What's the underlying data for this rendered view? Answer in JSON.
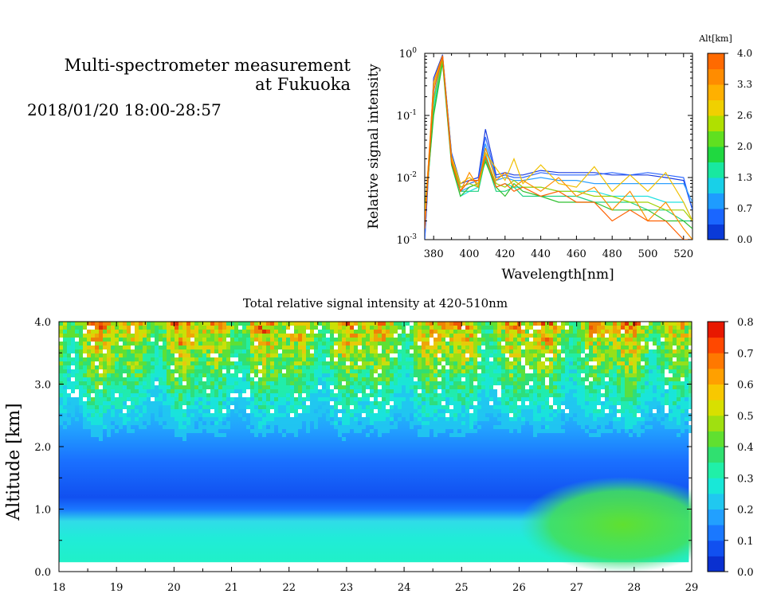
{
  "header": {
    "title_line1": "Multi-spectrometer measurement",
    "title_line2": "at Fukuoka",
    "date_range": "2018/01/20 18:00-28:57"
  },
  "chart_data": [
    {
      "type": "line",
      "xlabel": "Wavelength[nm]",
      "ylabel": "Relative signal intensity",
      "xlim": [
        375,
        525
      ],
      "ylim": [
        0.001,
        1
      ],
      "yscale": "log",
      "x_ticks": [
        "380",
        "400",
        "420",
        "440",
        "460",
        "480",
        "500",
        "520"
      ],
      "y_ticks": [
        {
          "base": "10",
          "exp": "0"
        },
        {
          "base": "10",
          "exp": "-1"
        },
        {
          "base": "10",
          "exp": "-2"
        },
        {
          "base": "10",
          "exp": "-3"
        }
      ],
      "x": [
        375,
        380,
        385,
        390,
        395,
        400,
        405,
        409,
        415,
        420,
        425,
        430,
        440,
        450,
        460,
        470,
        480,
        490,
        500,
        510,
        520,
        525
      ],
      "series": [
        {
          "color": "#1a3ce0",
          "values": [
            0.001,
            0.4,
            0.95,
            0.025,
            0.008,
            0.009,
            0.01,
            0.06,
            0.011,
            0.012,
            0.011,
            0.011,
            0.013,
            0.012,
            0.012,
            0.012,
            0.011,
            0.011,
            0.011,
            0.01,
            0.009,
            0.003
          ]
        },
        {
          "color": "#2a66ff",
          "values": [
            0.001,
            0.3,
            0.9,
            0.024,
            0.007,
            0.008,
            0.009,
            0.045,
            0.01,
            0.011,
            0.01,
            0.01,
            0.012,
            0.011,
            0.011,
            0.011,
            0.012,
            0.011,
            0.012,
            0.011,
            0.01,
            0.003
          ]
        },
        {
          "color": "#2fa0ff",
          "values": [
            0.0015,
            0.2,
            0.85,
            0.02,
            0.006,
            0.007,
            0.008,
            0.035,
            0.009,
            0.01,
            0.009,
            0.009,
            0.01,
            0.009,
            0.009,
            0.008,
            0.008,
            0.008,
            0.008,
            0.008,
            0.008,
            0.004
          ]
        },
        {
          "color": "#20e0e0",
          "values": [
            0.002,
            0.15,
            0.8,
            0.018,
            0.005,
            0.006,
            0.007,
            0.025,
            0.007,
            0.008,
            0.007,
            0.007,
            0.007,
            0.006,
            0.006,
            0.006,
            0.005,
            0.005,
            0.005,
            0.004,
            0.004,
            0.002
          ]
        },
        {
          "color": "#20d080",
          "values": [
            0.002,
            0.12,
            0.75,
            0.017,
            0.006,
            0.006,
            0.006,
            0.02,
            0.006,
            0.006,
            0.007,
            0.005,
            0.005,
            0.005,
            0.005,
            0.004,
            0.004,
            0.004,
            0.003,
            0.003,
            0.002,
            0.002
          ]
        },
        {
          "color": "#30c030",
          "values": [
            0.0025,
            0.1,
            0.7,
            0.016,
            0.005,
            0.007,
            0.008,
            0.018,
            0.007,
            0.005,
            0.008,
            0.006,
            0.005,
            0.004,
            0.004,
            0.004,
            0.003,
            0.003,
            0.003,
            0.002,
            0.002,
            0.0015
          ]
        },
        {
          "color": "#a0d000",
          "values": [
            0.003,
            0.18,
            0.8,
            0.02,
            0.007,
            0.008,
            0.007,
            0.022,
            0.008,
            0.007,
            0.009,
            0.007,
            0.007,
            0.006,
            0.006,
            0.005,
            0.005,
            0.004,
            0.004,
            0.003,
            0.003,
            0.002
          ]
        },
        {
          "color": "#f0c000",
          "values": [
            0.002,
            0.3,
            0.9,
            0.022,
            0.008,
            0.01,
            0.008,
            0.025,
            0.014,
            0.009,
            0.02,
            0.008,
            0.016,
            0.008,
            0.007,
            0.015,
            0.006,
            0.011,
            0.006,
            0.012,
            0.004,
            0.002
          ]
        },
        {
          "color": "#ff9000",
          "values": [
            0.002,
            0.35,
            0.92,
            0.02,
            0.006,
            0.012,
            0.007,
            0.03,
            0.009,
            0.012,
            0.007,
            0.009,
            0.006,
            0.01,
            0.005,
            0.007,
            0.003,
            0.006,
            0.002,
            0.004,
            0.0015,
            0.001
          ]
        },
        {
          "color": "#ff6000",
          "values": [
            0.0015,
            0.25,
            0.9,
            0.018,
            0.006,
            0.009,
            0.009,
            0.022,
            0.007,
            0.008,
            0.006,
            0.007,
            0.005,
            0.006,
            0.004,
            0.004,
            0.002,
            0.003,
            0.002,
            0.002,
            0.001,
            0.001
          ]
        }
      ],
      "colorbar": {
        "title": "Alt[km]",
        "range": [
          0,
          4
        ],
        "labels": [
          "4.0",
          "3.3",
          "2.6",
          "2.0",
          "1.3",
          "0.7",
          "0.0"
        ],
        "colors": [
          "#0a3ad8",
          "#1a66ff",
          "#1e9cff",
          "#18d0e8",
          "#18e8a0",
          "#20d840",
          "#60e020",
          "#b0e000",
          "#f0d000",
          "#ffb000",
          "#ff8c00",
          "#ff6a00"
        ]
      }
    },
    {
      "type": "heatmap",
      "title": "Total relative signal intensity at 420-510nm",
      "ylabel": "Altitude [km]",
      "xlim": [
        18,
        29
      ],
      "ylim": [
        0,
        4
      ],
      "x_ticks": [
        "18",
        "19",
        "20",
        "21",
        "22",
        "23",
        "24",
        "25",
        "26",
        "27",
        "28",
        "29"
      ],
      "y_ticks": [
        "0.0",
        "1.0",
        "2.0",
        "3.0",
        "4.0"
      ],
      "data_range_x": [
        18,
        28.95
      ],
      "data_range_y": [
        0.15,
        4.0
      ],
      "colorbar": {
        "range": [
          0,
          0.8
        ],
        "labels": [
          "0.8",
          "0.7",
          "0.6",
          "0.5",
          "0.4",
          "0.3",
          "0.2",
          "0.1",
          "0.0"
        ],
        "colors": [
          "#0a30d0",
          "#1150f0",
          "#1a78ff",
          "#22a0ff",
          "#20c8f0",
          "#18e8d8",
          "#20f0a8",
          "#30e070",
          "#60e030",
          "#a0e010",
          "#d8e000",
          "#f8c800",
          "#ffa000",
          "#ff7800",
          "#ff4800",
          "#e81800"
        ]
      }
    }
  ]
}
